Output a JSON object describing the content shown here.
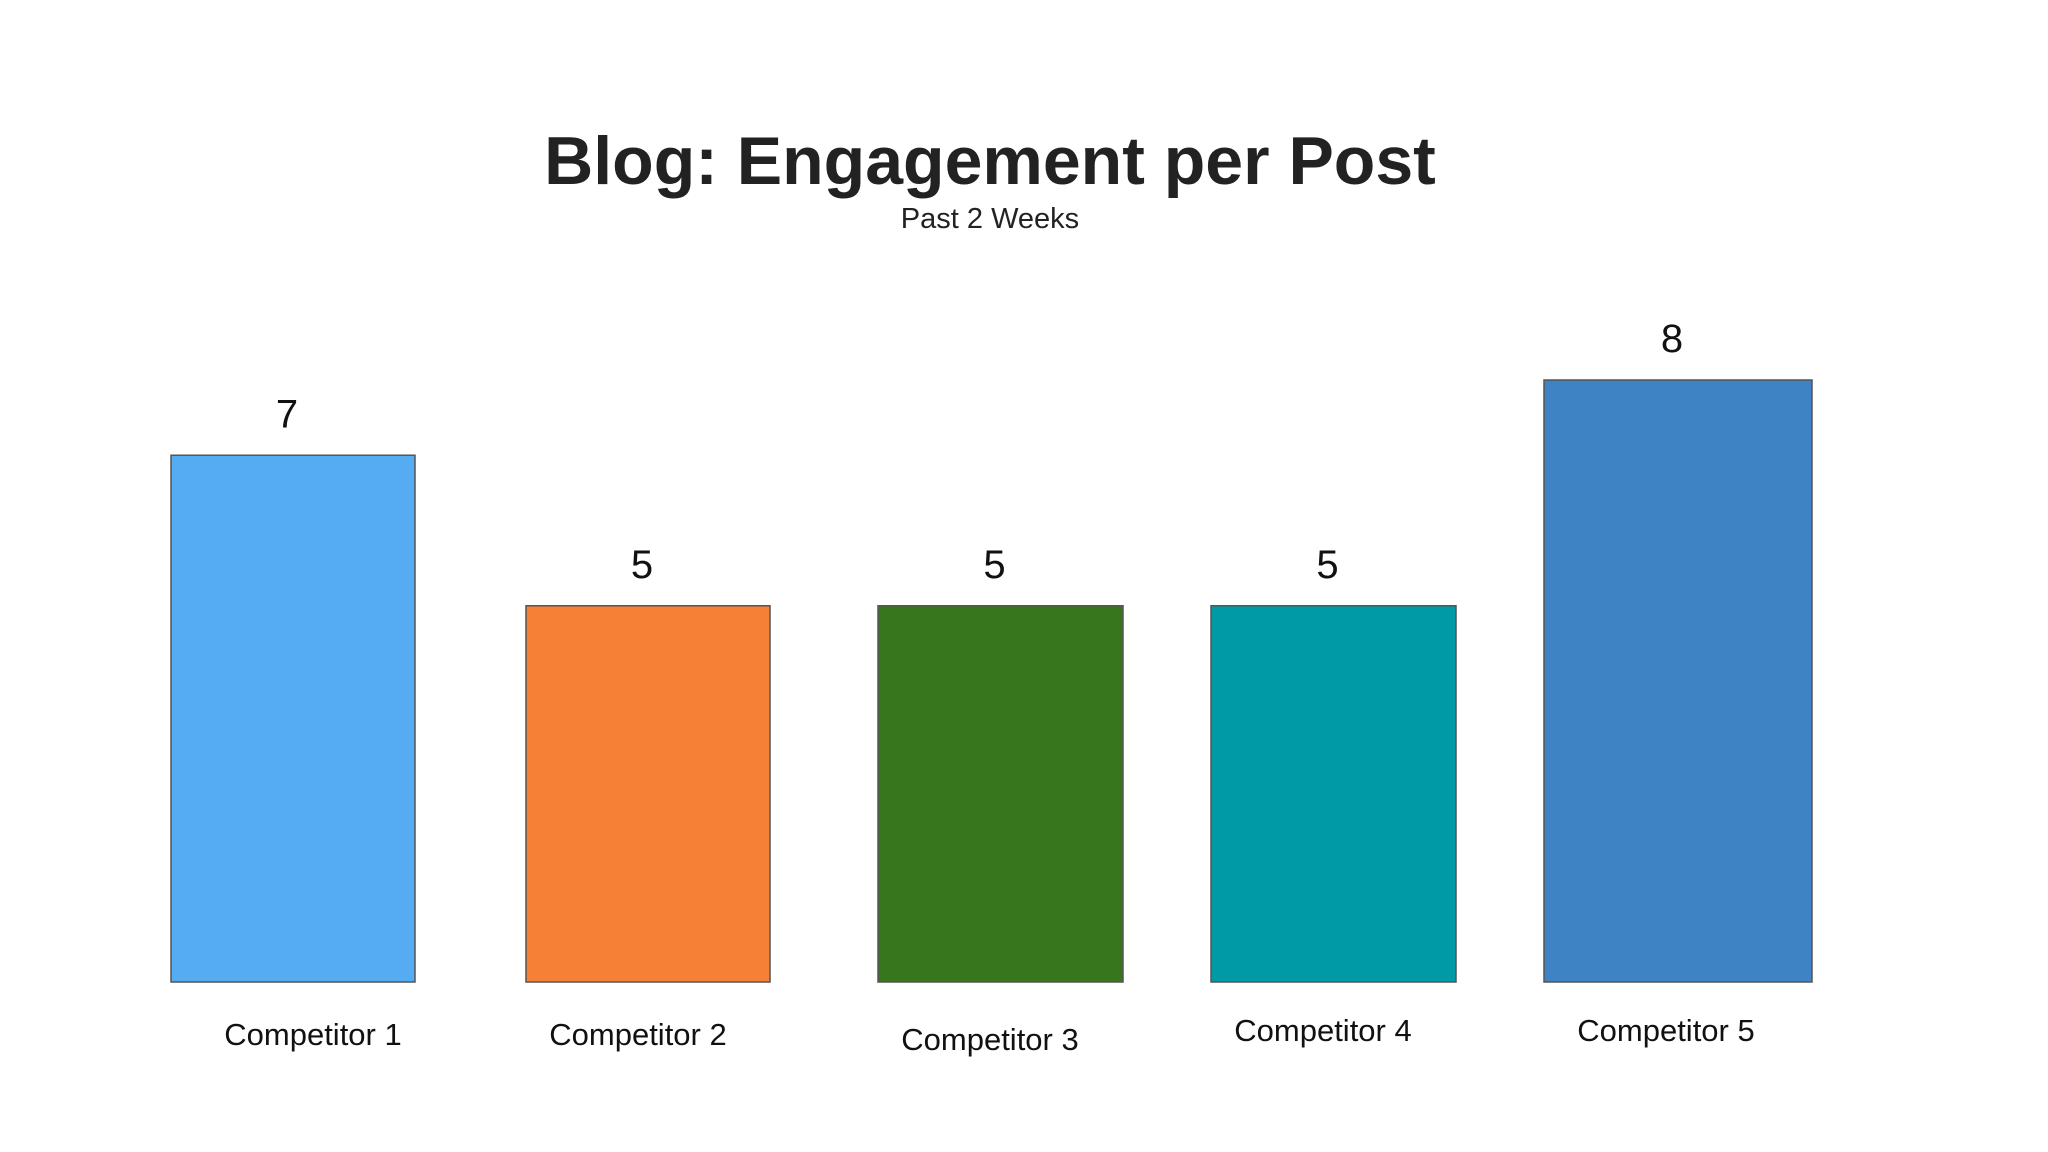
{
  "chart_data": {
    "type": "bar",
    "title": "Blog: Engagement per Post",
    "subtitle": "Past 2 Weeks",
    "categories": [
      "Competitor 1",
      "Competitor 2",
      "Competitor 3",
      "Competitor 4",
      "Competitor 5"
    ],
    "values": [
      7,
      5,
      5,
      5,
      8
    ],
    "colors": [
      "#55acf0",
      "#f58036",
      "#38761d",
      "#0099a6",
      "#3e83c4"
    ]
  }
}
